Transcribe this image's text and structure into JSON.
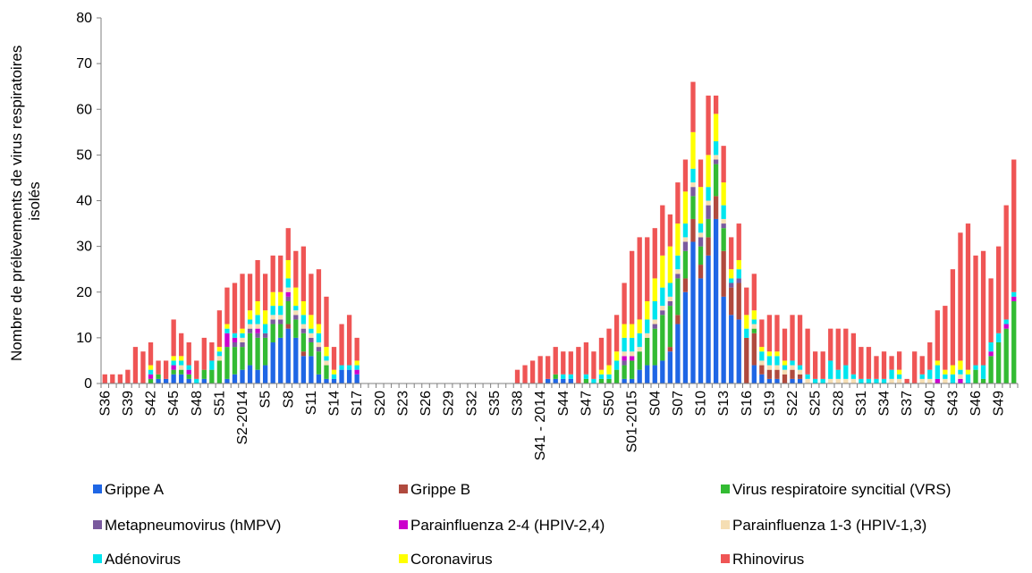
{
  "chart_data": {
    "type": "bar",
    "stacked": true,
    "title": "",
    "ylabel": "Nombre de prélèvements de virus respiratoires isolés",
    "ylabel_lines": [
      "Nombre de prélèvements de virus respiratoires",
      "isolés"
    ],
    "xlabel": "",
    "ylim": [
      0,
      80
    ],
    "yticks": [
      0,
      10,
      20,
      30,
      40,
      50,
      60,
      70,
      80
    ],
    "grid": false,
    "legend_position": "bottom",
    "x_tick_labels": [
      {
        "index": 0,
        "label": "S36"
      },
      {
        "index": 3,
        "label": "S39"
      },
      {
        "index": 6,
        "label": "S42"
      },
      {
        "index": 9,
        "label": "S45"
      },
      {
        "index": 12,
        "label": "S48"
      },
      {
        "index": 15,
        "label": "S51"
      },
      {
        "index": 18,
        "label": "S2-2014"
      },
      {
        "index": 21,
        "label": "S5"
      },
      {
        "index": 24,
        "label": "S8"
      },
      {
        "index": 27,
        "label": "S11"
      },
      {
        "index": 30,
        "label": "S14"
      },
      {
        "index": 33,
        "label": "S17"
      },
      {
        "index": 36,
        "label": "S20"
      },
      {
        "index": 39,
        "label": "S23"
      },
      {
        "index": 42,
        "label": "S26"
      },
      {
        "index": 45,
        "label": "S29"
      },
      {
        "index": 48,
        "label": "S32"
      },
      {
        "index": 51,
        "label": "S35"
      },
      {
        "index": 54,
        "label": "S38"
      },
      {
        "index": 57,
        "label": "S41 - 2014"
      },
      {
        "index": 60,
        "label": "S44"
      },
      {
        "index": 63,
        "label": "S47"
      },
      {
        "index": 66,
        "label": "S50"
      },
      {
        "index": 69,
        "label": "S01-2015"
      },
      {
        "index": 72,
        "label": "S04"
      },
      {
        "index": 75,
        "label": "S07"
      },
      {
        "index": 78,
        "label": "S10"
      },
      {
        "index": 81,
        "label": "S13"
      },
      {
        "index": 84,
        "label": "S16"
      },
      {
        "index": 87,
        "label": "S19"
      },
      {
        "index": 90,
        "label": "S22"
      },
      {
        "index": 93,
        "label": "S25"
      },
      {
        "index": 96,
        "label": "S28"
      },
      {
        "index": 99,
        "label": "S31"
      },
      {
        "index": 102,
        "label": "S34"
      },
      {
        "index": 105,
        "label": "S37"
      },
      {
        "index": 108,
        "label": "S40"
      },
      {
        "index": 111,
        "label": "S43"
      },
      {
        "index": 114,
        "label": "S46"
      },
      {
        "index": 117,
        "label": "S49"
      }
    ],
    "series": [
      {
        "name": "Grippe A",
        "color": "#1f66e5",
        "values": [
          0,
          0,
          0,
          0,
          0,
          0,
          0,
          1,
          1,
          2,
          2,
          1,
          0,
          1,
          0,
          0,
          1,
          2,
          3,
          4,
          3,
          4,
          9,
          10,
          12,
          10,
          6,
          6,
          2,
          1,
          1,
          3,
          3,
          2,
          0,
          0,
          0,
          0,
          0,
          0,
          0,
          0,
          0,
          0,
          0,
          0,
          0,
          0,
          0,
          0,
          0,
          0,
          0,
          0,
          0,
          0,
          0,
          0,
          1,
          1,
          1,
          1,
          0,
          0,
          0,
          0,
          0,
          0,
          1,
          1,
          3,
          4,
          4,
          5,
          7,
          13,
          20,
          31,
          23,
          28,
          36,
          19,
          15,
          14,
          0,
          4,
          2,
          1,
          1,
          0,
          1,
          1,
          0,
          0,
          0,
          0,
          0,
          0,
          0,
          0,
          0,
          0,
          0,
          0,
          0,
          0,
          0,
          0,
          0,
          0,
          0,
          0,
          0,
          0,
          0,
          0,
          0,
          0,
          0,
          0
        ]
      },
      {
        "name": "Grippe B",
        "color": "#b04a3e",
        "values": [
          0,
          0,
          0,
          0,
          0,
          0,
          0,
          0,
          0,
          0,
          0,
          0,
          0,
          0,
          0,
          0,
          0,
          0,
          0,
          0,
          0,
          0,
          0,
          0,
          1,
          0,
          1,
          0,
          0,
          0,
          0,
          0,
          0,
          0,
          0,
          0,
          0,
          0,
          0,
          0,
          0,
          0,
          0,
          0,
          0,
          0,
          0,
          0,
          0,
          0,
          0,
          0,
          0,
          0,
          0,
          0,
          0,
          0,
          0,
          0,
          0,
          0,
          0,
          0,
          0,
          0,
          0,
          0,
          0,
          0,
          0,
          0,
          0,
          0,
          1,
          2,
          3,
          5,
          3,
          4,
          5,
          10,
          6,
          8,
          10,
          7,
          2,
          2,
          2,
          2,
          2,
          1,
          0,
          0,
          0,
          0,
          0,
          0,
          0,
          0,
          0,
          0,
          0,
          0,
          0,
          0,
          0,
          0,
          0,
          0,
          0,
          0,
          0,
          0,
          0,
          0,
          0,
          0,
          0,
          0
        ]
      },
      {
        "name": "Virus respiratoire syncitial (VRS)",
        "color": "#33bb33",
        "values": [
          0,
          0,
          0,
          0,
          0,
          0,
          1,
          1,
          0,
          1,
          1,
          1,
          0,
          2,
          3,
          5,
          7,
          6,
          5,
          7,
          7,
          6,
          4,
          3,
          5,
          4,
          4,
          3,
          5,
          3,
          0,
          0,
          0,
          0,
          0,
          0,
          0,
          0,
          0,
          0,
          0,
          0,
          0,
          0,
          0,
          0,
          0,
          0,
          0,
          0,
          0,
          0,
          0,
          0,
          0,
          0,
          0,
          0,
          0,
          1,
          0,
          0,
          0,
          1,
          0,
          1,
          1,
          3,
          3,
          4,
          4,
          6,
          8,
          10,
          9,
          8,
          6,
          5,
          4,
          4,
          7,
          5,
          0,
          0,
          0,
          1,
          0,
          0,
          0,
          0,
          0,
          0,
          0,
          0,
          0,
          0,
          0,
          0,
          0,
          0,
          0,
          0,
          0,
          0,
          0,
          0,
          0,
          0,
          0,
          0,
          0,
          0,
          0,
          0,
          3,
          1,
          6,
          9,
          12,
          18
        ]
      },
      {
        "name": "Metapneumovirus (hMPV)",
        "color": "#7a5a9e",
        "values": [
          0,
          0,
          0,
          0,
          0,
          0,
          0,
          0,
          0,
          0,
          0,
          0,
          0,
          0,
          0,
          0,
          0,
          1,
          1,
          1,
          1,
          1,
          1,
          1,
          1,
          1,
          1,
          1,
          1,
          0,
          0,
          0,
          0,
          0,
          0,
          0,
          0,
          0,
          0,
          0,
          0,
          0,
          0,
          0,
          0,
          0,
          0,
          0,
          0,
          0,
          0,
          0,
          0,
          0,
          0,
          0,
          0,
          0,
          0,
          0,
          0,
          0,
          0,
          0,
          0,
          0,
          0,
          0,
          1,
          0,
          0,
          0,
          1,
          1,
          1,
          1,
          2,
          2,
          2,
          3,
          1,
          1,
          1,
          1,
          0,
          0,
          0,
          0,
          0,
          0,
          0,
          0,
          0,
          0,
          0,
          0,
          0,
          0,
          0,
          0,
          0,
          0,
          0,
          0,
          0,
          0,
          0,
          0,
          0,
          0,
          0,
          0,
          0,
          0,
          0,
          0,
          0,
          0,
          0,
          0
        ]
      },
      {
        "name": "Parainfluenza 2-4 (HPIV-2,4)",
        "color": "#cc00cc",
        "values": [
          0,
          0,
          0,
          0,
          0,
          0,
          1,
          0,
          0,
          1,
          0,
          1,
          0,
          0,
          0,
          0,
          3,
          1,
          0,
          0,
          1,
          0,
          0,
          0,
          1,
          0,
          0,
          0,
          0,
          0,
          0,
          0,
          0,
          1,
          0,
          0,
          0,
          0,
          0,
          0,
          0,
          0,
          0,
          0,
          0,
          0,
          0,
          0,
          0,
          0,
          0,
          0,
          0,
          0,
          0,
          0,
          0,
          0,
          0,
          0,
          0,
          0,
          0,
          0,
          0,
          0,
          0,
          0,
          1,
          1,
          0,
          0,
          0,
          0,
          0,
          0,
          0,
          0,
          0,
          0,
          0,
          0,
          0,
          0,
          0,
          0,
          0,
          0,
          0,
          0,
          0,
          0,
          0,
          0,
          0,
          0,
          0,
          0,
          0,
          0,
          0,
          0,
          0,
          0,
          0,
          0,
          0,
          0,
          0,
          1,
          0,
          0,
          1,
          0,
          0,
          0,
          1,
          0,
          1,
          1
        ]
      },
      {
        "name": "Parainfluenza 1-3 (HPIV-1,3)",
        "color": "#f5deb3",
        "values": [
          0,
          0,
          0,
          0,
          0,
          0,
          0,
          0,
          0,
          0,
          1,
          0,
          0,
          0,
          0,
          1,
          0,
          0,
          1,
          1,
          1,
          0,
          1,
          1,
          1,
          1,
          1,
          1,
          1,
          1,
          0,
          0,
          0,
          0,
          0,
          0,
          0,
          0,
          0,
          0,
          0,
          0,
          0,
          0,
          0,
          0,
          0,
          0,
          0,
          0,
          0,
          0,
          0,
          0,
          0,
          0,
          0,
          0,
          0,
          0,
          0,
          0,
          0,
          0,
          0,
          0,
          0,
          0,
          1,
          1,
          1,
          1,
          1,
          1,
          1,
          1,
          1,
          1,
          1,
          1,
          1,
          1,
          0,
          0,
          0,
          1,
          1,
          1,
          1,
          1,
          1,
          1,
          1,
          0,
          0,
          1,
          1,
          1,
          1,
          0,
          0,
          0,
          0,
          1,
          1,
          0,
          0,
          1,
          1,
          0,
          1,
          0,
          1,
          0,
          0,
          0,
          0,
          0,
          0,
          0
        ]
      },
      {
        "name": "Adénovirus",
        "color": "#00e5ee",
        "values": [
          0,
          0,
          0,
          0,
          0,
          0,
          1,
          0,
          0,
          1,
          1,
          1,
          1,
          0,
          2,
          1,
          1,
          1,
          1,
          1,
          2,
          2,
          2,
          2,
          2,
          1,
          2,
          1,
          2,
          1,
          1,
          1,
          1,
          1,
          0,
          0,
          0,
          0,
          0,
          0,
          0,
          0,
          0,
          0,
          0,
          0,
          0,
          0,
          0,
          0,
          0,
          0,
          0,
          0,
          0,
          0,
          0,
          0,
          0,
          0,
          1,
          1,
          0,
          1,
          1,
          1,
          1,
          2,
          3,
          3,
          3,
          3,
          4,
          4,
          3,
          3,
          3,
          3,
          2,
          3,
          3,
          3,
          1,
          2,
          2,
          1,
          2,
          2,
          2,
          1,
          1,
          1,
          1,
          1,
          1,
          4,
          2,
          3,
          1,
          1,
          1,
          1,
          1,
          2,
          1,
          0,
          0,
          1,
          2,
          3,
          1,
          2,
          1,
          2,
          1,
          3,
          2,
          2,
          1,
          1
        ]
      },
      {
        "name": "Coronavirus",
        "color": "#ffff00",
        "values": [
          0,
          0,
          0,
          0,
          0,
          0,
          1,
          0,
          0,
          1,
          1,
          0,
          0,
          0,
          0,
          1,
          1,
          0,
          1,
          2,
          3,
          3,
          3,
          3,
          4,
          4,
          3,
          3,
          2,
          2,
          1,
          0,
          0,
          1,
          0,
          0,
          0,
          0,
          0,
          0,
          0,
          0,
          0,
          0,
          0,
          0,
          0,
          0,
          0,
          0,
          0,
          0,
          0,
          0,
          0,
          0,
          0,
          0,
          0,
          0,
          0,
          0,
          0,
          0,
          0,
          1,
          2,
          2,
          3,
          3,
          3,
          4,
          5,
          7,
          8,
          7,
          7,
          8,
          8,
          7,
          6,
          5,
          2,
          2,
          3,
          2,
          1,
          1,
          1,
          1,
          0,
          0,
          0,
          0,
          0,
          0,
          0,
          0,
          0,
          0,
          0,
          0,
          0,
          0,
          1,
          0,
          0,
          0,
          0,
          1,
          1,
          2,
          2,
          1,
          0,
          0,
          0,
          0,
          0,
          0
        ]
      },
      {
        "name": "Rhinovirus",
        "color": "#ef5555",
        "values": [
          2,
          2,
          2,
          3,
          8,
          7,
          5,
          3,
          4,
          8,
          5,
          5,
          4,
          7,
          4,
          8,
          8,
          11,
          12,
          8,
          9,
          8,
          8,
          8,
          7,
          8,
          12,
          9,
          12,
          11,
          5,
          9,
          11,
          5,
          0,
          0,
          0,
          0,
          0,
          0,
          0,
          0,
          0,
          0,
          0,
          0,
          0,
          0,
          0,
          0,
          0,
          0,
          0,
          0,
          3,
          4,
          5,
          6,
          5,
          6,
          5,
          5,
          8,
          7,
          6,
          7,
          8,
          8,
          9,
          16,
          18,
          14,
          11,
          11,
          7,
          9,
          7,
          11,
          6,
          13,
          4,
          8,
          7,
          8,
          6,
          8,
          6,
          8,
          8,
          7,
          10,
          11,
          10,
          6,
          6,
          7,
          9,
          8,
          9,
          7,
          7,
          5,
          6,
          3,
          4,
          1,
          7,
          4,
          6,
          11,
          14,
          21,
          28,
          32,
          24,
          25,
          14,
          19,
          25,
          29
        ]
      }
    ]
  }
}
